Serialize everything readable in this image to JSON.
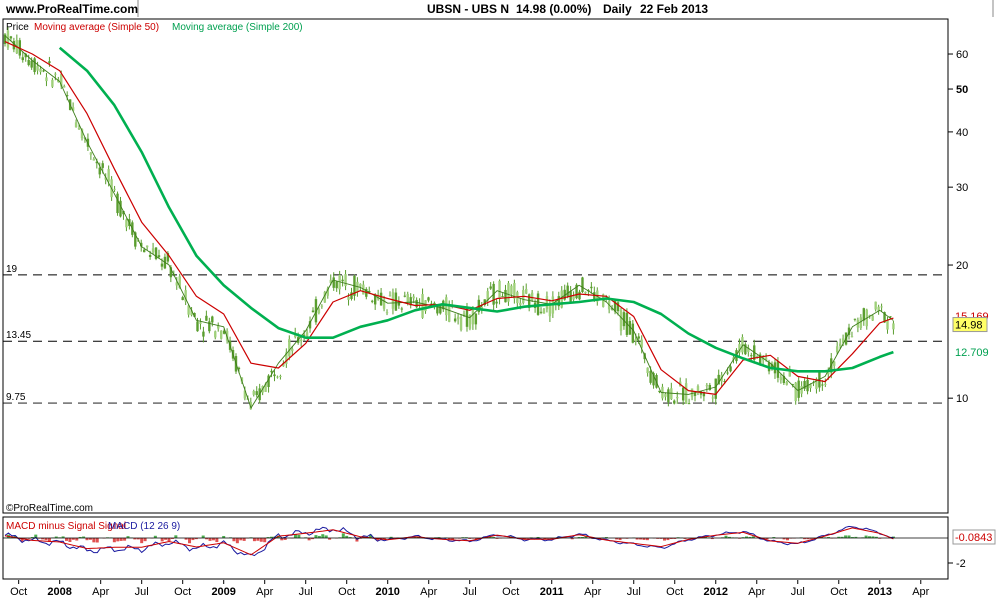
{
  "header": {
    "site": "www.ProRealTime.com",
    "instrument": "UBSN - UBS N",
    "quote": "14.98 (0.00%)",
    "timeframe": "Daily",
    "date": "22 Feb 2013"
  },
  "main_panel": {
    "legend_prefix": "Price",
    "legend_ma50": "Moving average (Simple 50)",
    "legend_ma200": "Moving average (Simple 200)",
    "copyright": "©ProRealTime.com",
    "h_lines": [
      {
        "label": "19",
        "value": 19
      },
      {
        "label": "13.45",
        "value": 13.45
      },
      {
        "label": "9.75",
        "value": 9.75
      }
    ],
    "y_ticks": [
      "60",
      "50",
      "40",
      "30",
      "20",
      "10"
    ],
    "badges": {
      "ma50_value": "15.169",
      "price_value": "14.98",
      "ma200_value": "12.709"
    }
  },
  "macd_panel": {
    "legend_a": "MACD minus Signal Signal",
    "legend_b": "MACD (12 26 9)",
    "value_badge": "-0.0843",
    "y_ticks": [
      "-2"
    ]
  },
  "x_axis": {
    "labels": [
      "Oct",
      "2008",
      "Apr",
      "Jul",
      "Oct",
      "2009",
      "Apr",
      "Jul",
      "Oct",
      "2010",
      "Apr",
      "Jul",
      "Oct",
      "2011",
      "Apr",
      "Jul",
      "Oct",
      "2012",
      "Apr",
      "Jul",
      "Oct",
      "2013",
      "Apr"
    ]
  },
  "colors": {
    "ma50": "#cc0000",
    "ma200": "#00b050",
    "candle": "#5a9e2f",
    "price_badge": "#ffff66",
    "macd_line": "#1a1aa0",
    "signal_line": "#cc0000",
    "hist_up": "#4caf50",
    "hist_down": "#e05050"
  },
  "chart_data": {
    "type": "line",
    "log_scale": true,
    "title": "UBSN - UBS N",
    "ylim": [
      5.5,
      72
    ],
    "x": [
      "2007-09",
      "2007-11",
      "2008-01",
      "2008-03",
      "2008-05",
      "2008-07",
      "2008-09",
      "2008-11",
      "2009-01",
      "2009-03",
      "2009-05",
      "2009-07",
      "2009-09",
      "2009-11",
      "2010-01",
      "2010-03",
      "2010-05",
      "2010-07",
      "2010-09",
      "2010-11",
      "2011-01",
      "2011-03",
      "2011-05",
      "2011-07",
      "2011-09",
      "2011-11",
      "2012-01",
      "2012-03",
      "2012-05",
      "2012-07",
      "2012-09",
      "2012-11",
      "2013-01",
      "2013-02"
    ],
    "series": [
      {
        "name": "Price",
        "values": [
          66,
          58,
          52,
          38,
          29,
          22,
          20,
          15,
          14.5,
          9.5,
          12,
          14.2,
          18.5,
          17.8,
          16.4,
          16.5,
          16.0,
          15.2,
          17.5,
          16.7,
          16.3,
          18.0,
          16.5,
          14.2,
          10.3,
          10.2,
          10.6,
          13.2,
          12.0,
          10.4,
          11.2,
          14.5,
          15.8,
          14.98
        ]
      },
      {
        "name": "Moving average (Simple 50)",
        "values": [
          64,
          60,
          55,
          44,
          33,
          25,
          21,
          17,
          15.5,
          12.0,
          11.7,
          13.3,
          16.5,
          17.5,
          16.8,
          16.2,
          16.3,
          15.8,
          16.8,
          17.0,
          16.6,
          17.2,
          17.0,
          15.3,
          11.6,
          10.4,
          10.2,
          12.2,
          12.5,
          11.2,
          10.9,
          12.6,
          14.8,
          15.17
        ]
      },
      {
        "name": "Moving average (Simple 200)",
        "values": [
          null,
          null,
          62,
          55,
          46,
          36,
          27,
          21,
          18.0,
          16.0,
          14.4,
          13.7,
          13.7,
          14.5,
          15.0,
          15.8,
          16.3,
          16.0,
          15.7,
          16.1,
          16.3,
          16.5,
          16.8,
          16.5,
          15.5,
          14.0,
          13.0,
          12.3,
          11.7,
          11.5,
          11.5,
          11.7,
          12.4,
          12.71
        ]
      }
    ]
  }
}
